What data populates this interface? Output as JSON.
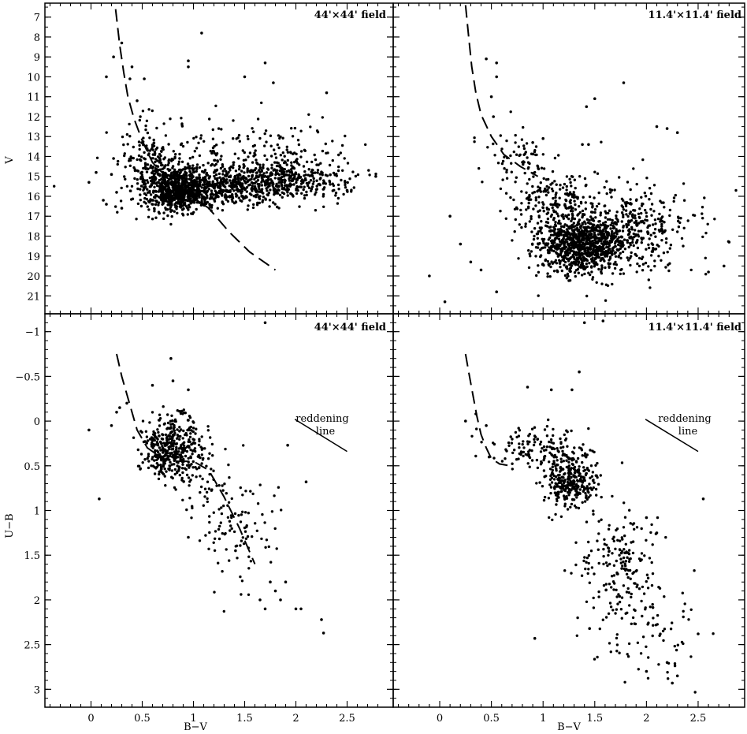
{
  "chart_data": [
    {
      "type": "scatter",
      "panel": "top-left",
      "label": "44'×44' field",
      "xlabel": "",
      "ylabel": "V",
      "xlim": [
        -0.45,
        2.95
      ],
      "ylim": [
        21.9,
        6.3
      ],
      "y_inverted": true,
      "xticks": [],
      "xticks_major": [
        0,
        0.5,
        1,
        1.5,
        2,
        2.5
      ],
      "yticks": [
        7,
        8,
        9,
        10,
        11,
        12,
        13,
        14,
        15,
        16,
        17,
        18,
        19,
        20,
        21
      ],
      "cloud": [
        {
          "x": 0.85,
          "y": 15.6,
          "sx": 0.16,
          "sy": 0.55,
          "n": 700
        },
        {
          "x": 1.35,
          "y": 15.5,
          "sx": 0.28,
          "sy": 0.5,
          "n": 450
        },
        {
          "x": 1.95,
          "y": 15.1,
          "sx": 0.28,
          "sy": 0.55,
          "n": 350
        },
        {
          "x": 0.55,
          "y": 14.6,
          "sx": 0.12,
          "sy": 1.2,
          "n": 180
        },
        {
          "x": 1.5,
          "y": 13.6,
          "sx": 0.55,
          "sy": 0.9,
          "n": 160
        }
      ],
      "points": [
        [
          1.08,
          7.8
        ],
        [
          0.95,
          9.2
        ],
        [
          0.95,
          9.5
        ],
        [
          1.7,
          9.3
        ],
        [
          1.5,
          10.0
        ],
        [
          1.78,
          10.3
        ],
        [
          2.3,
          10.8
        ],
        [
          0.3,
          8.3
        ],
        [
          0.22,
          9.0
        ],
        [
          0.15,
          10.0
        ],
        [
          0.38,
          10.1
        ],
        [
          0.52,
          10.1
        ],
        [
          -0.02,
          15.3
        ],
        [
          0.05,
          14.8
        ],
        [
          0.12,
          16.2
        ],
        [
          0.15,
          16.4
        ],
        [
          0.2,
          14.9
        ],
        [
          0.22,
          14.1
        ],
        [
          0.25,
          15.8
        ],
        [
          0.3,
          16.6
        ],
        [
          2.78,
          15.0
        ],
        [
          2.5,
          15.7
        ],
        [
          0.4,
          9.5
        ],
        [
          0.45,
          11.2
        ]
      ],
      "curve": {
        "name": "",
        "style": "dashed",
        "x": [
          0.24,
          0.28,
          0.32,
          0.36,
          0.42,
          0.5,
          0.6,
          0.75,
          0.95,
          1.15,
          1.35,
          1.55,
          1.8
        ],
        "y": [
          6.6,
          8.4,
          9.8,
          11.0,
          12.1,
          13.2,
          14.3,
          15.1,
          15.9,
          16.6,
          17.8,
          18.8,
          19.7
        ]
      },
      "legend": "none",
      "grid": false
    },
    {
      "type": "scatter",
      "panel": "top-right",
      "label": "11.4'×11.4' field",
      "xlabel": "",
      "ylabel": "",
      "xlim": [
        -0.45,
        2.95
      ],
      "ylim": [
        21.9,
        6.3
      ],
      "y_inverted": true,
      "yticks": [
        7,
        8,
        9,
        10,
        11,
        12,
        13,
        14,
        15,
        16,
        17,
        18,
        19,
        20,
        21
      ],
      "cloud": [
        {
          "x": 1.35,
          "y": 18.5,
          "sx": 0.2,
          "sy": 0.7,
          "n": 800
        },
        {
          "x": 1.75,
          "y": 17.6,
          "sx": 0.35,
          "sy": 1.1,
          "n": 500
        },
        {
          "x": 1.05,
          "y": 16.3,
          "sx": 0.2,
          "sy": 1.0,
          "n": 180
        },
        {
          "x": 0.75,
          "y": 14.0,
          "sx": 0.15,
          "sy": 0.8,
          "n": 60
        }
      ],
      "points": [
        [
          0.45,
          9.1
        ],
        [
          0.55,
          9.3
        ],
        [
          0.55,
          10.0
        ],
        [
          0.5,
          11.0
        ],
        [
          0.52,
          12.0
        ],
        [
          1.5,
          11.1
        ],
        [
          1.42,
          11.5
        ],
        [
          1.78,
          10.3
        ],
        [
          1.0,
          13.1
        ],
        [
          0.9,
          13.3
        ],
        [
          1.38,
          13.4
        ],
        [
          1.44,
          13.4
        ],
        [
          -0.1,
          20.0
        ],
        [
          0.05,
          21.3
        ],
        [
          0.1,
          17.0
        ],
        [
          0.2,
          18.4
        ],
        [
          0.3,
          19.3
        ],
        [
          0.4,
          19.7
        ],
        [
          0.55,
          20.8
        ],
        [
          2.8,
          18.3
        ],
        [
          2.75,
          19.5
        ],
        [
          2.6,
          19.8
        ],
        [
          2.1,
          12.5
        ],
        [
          2.2,
          12.6
        ],
        [
          2.3,
          12.8
        ]
      ],
      "curve": {
        "name": "",
        "style": "dashed",
        "x": [
          0.25,
          0.28,
          0.31,
          0.35,
          0.4,
          0.5,
          0.62,
          0.78,
          0.95
        ],
        "y": [
          6.4,
          8.0,
          9.5,
          10.8,
          11.9,
          13.0,
          13.9,
          14.5,
          15.0
        ]
      },
      "legend": "none",
      "grid": false
    },
    {
      "type": "scatter",
      "panel": "bottom-left",
      "label": "44'×44' field",
      "xlabel": "B−V",
      "ylabel": "U−B",
      "xlim": [
        -0.45,
        2.95
      ],
      "ylim": [
        3.2,
        -1.2
      ],
      "y_inverted": true,
      "xticks": [
        0,
        0.5,
        1,
        1.5,
        2,
        2.5
      ],
      "xtick_labels": [
        "0",
        "0.5",
        "1",
        "1.5",
        "2",
        "2.5"
      ],
      "yticks": [
        -1,
        -0.5,
        0,
        0.5,
        1,
        1.5,
        2,
        2.5,
        3
      ],
      "ytick_labels": [
        "−1",
        "−0.5",
        "0",
        "0.5",
        "1",
        "1.5",
        "2",
        "2.5",
        "3"
      ],
      "cloud": [
        {
          "x": 0.8,
          "y": 0.3,
          "sx": 0.15,
          "sy": 0.17,
          "n": 420
        },
        {
          "x": 1.45,
          "y": 1.3,
          "sx": 0.18,
          "sy": 0.35,
          "n": 90
        },
        {
          "x": 1.15,
          "y": 0.75,
          "sx": 0.15,
          "sy": 0.2,
          "n": 40
        }
      ],
      "points": [
        [
          1.7,
          -1.1
        ],
        [
          0.78,
          -0.7
        ],
        [
          0.8,
          -0.45
        ],
        [
          0.95,
          -0.35
        ],
        [
          0.6,
          -0.4
        ],
        [
          -0.02,
          0.1
        ],
        [
          0.2,
          0.05
        ],
        [
          0.25,
          -0.1
        ],
        [
          0.28,
          -0.15
        ],
        [
          0.35,
          -0.2
        ],
        [
          0.08,
          0.87
        ],
        [
          0.95,
          1.3
        ],
        [
          2.1,
          0.68
        ],
        [
          1.92,
          0.27
        ],
        [
          2.25,
          2.22
        ],
        [
          2.27,
          2.37
        ],
        [
          2.0,
          2.1
        ],
        [
          2.05,
          2.1
        ],
        [
          1.85,
          2.0
        ],
        [
          1.8,
          1.9
        ],
        [
          1.9,
          1.8
        ],
        [
          1.75,
          1.8
        ],
        [
          1.65,
          2.0
        ],
        [
          1.7,
          2.1
        ]
      ],
      "curve": {
        "name": "",
        "style": "dashed",
        "x": [
          0.25,
          0.3,
          0.35,
          0.4,
          0.45,
          0.55,
          0.7,
          0.85,
          1.0,
          1.15,
          1.3,
          1.45,
          1.6
        ],
        "y": [
          -0.75,
          -0.5,
          -0.3,
          -0.1,
          0.1,
          0.3,
          0.42,
          0.45,
          0.45,
          0.55,
          0.85,
          1.2,
          1.6
        ]
      },
      "reddening_line": {
        "x": [
          1.99,
          2.5
        ],
        "y": [
          -0.02,
          0.34
        ],
        "label_lines": [
          "reddening",
          "line"
        ]
      },
      "legend": "none",
      "grid": false
    },
    {
      "type": "scatter",
      "panel": "bottom-right",
      "label": "11.4'×11.4' field",
      "xlabel": "B−V",
      "ylabel": "",
      "xlim": [
        -0.45,
        2.95
      ],
      "ylim": [
        3.2,
        -1.2
      ],
      "y_inverted": true,
      "xticks": [
        0,
        0.5,
        1,
        1.5,
        2,
        2.5
      ],
      "xtick_labels": [
        "0",
        "0.5",
        "1",
        "1.5",
        "2",
        "2.5"
      ],
      "yticks": [
        -1,
        -0.5,
        0,
        0.5,
        1,
        1.5,
        2,
        2.5,
        3
      ],
      "cloud": [
        {
          "x": 1.25,
          "y": 0.65,
          "sx": 0.13,
          "sy": 0.15,
          "n": 330
        },
        {
          "x": 0.95,
          "y": 0.3,
          "sx": 0.25,
          "sy": 0.12,
          "n": 120
        },
        {
          "x": 1.75,
          "y": 1.65,
          "sx": 0.2,
          "sy": 0.35,
          "n": 200
        },
        {
          "x": 2.1,
          "y": 2.4,
          "sx": 0.2,
          "sy": 0.3,
          "n": 60
        }
      ],
      "points": [
        [
          1.4,
          -1.1
        ],
        [
          1.58,
          -1.12
        ],
        [
          1.08,
          -0.35
        ],
        [
          1.28,
          -0.35
        ],
        [
          1.35,
          -0.55
        ],
        [
          0.85,
          -0.38
        ],
        [
          0.25,
          0.0
        ],
        [
          0.35,
          -0.08
        ],
        [
          0.45,
          0.05
        ],
        [
          0.92,
          2.43
        ],
        [
          1.45,
          2.32
        ],
        [
          2.55,
          0.87
        ],
        [
          2.5,
          2.38
        ],
        [
          2.25,
          2.93
        ],
        [
          2.3,
          2.85
        ],
        [
          2.0,
          2.8
        ],
        [
          2.2,
          2.7
        ],
        [
          2.0,
          1.08
        ],
        [
          2.1,
          1.25
        ]
      ],
      "curve": {
        "name": "",
        "style": "dashed",
        "x": [
          0.25,
          0.28,
          0.32,
          0.36,
          0.4,
          0.45,
          0.5,
          0.58,
          0.68
        ],
        "y": [
          -0.75,
          -0.55,
          -0.3,
          -0.05,
          0.15,
          0.3,
          0.42,
          0.48,
          0.5
        ]
      },
      "reddening_line": {
        "x": [
          1.99,
          2.5
        ],
        "y": [
          -0.02,
          0.34
        ],
        "label_lines": [
          "reddening",
          "line"
        ]
      },
      "legend": "none",
      "grid": false
    }
  ]
}
